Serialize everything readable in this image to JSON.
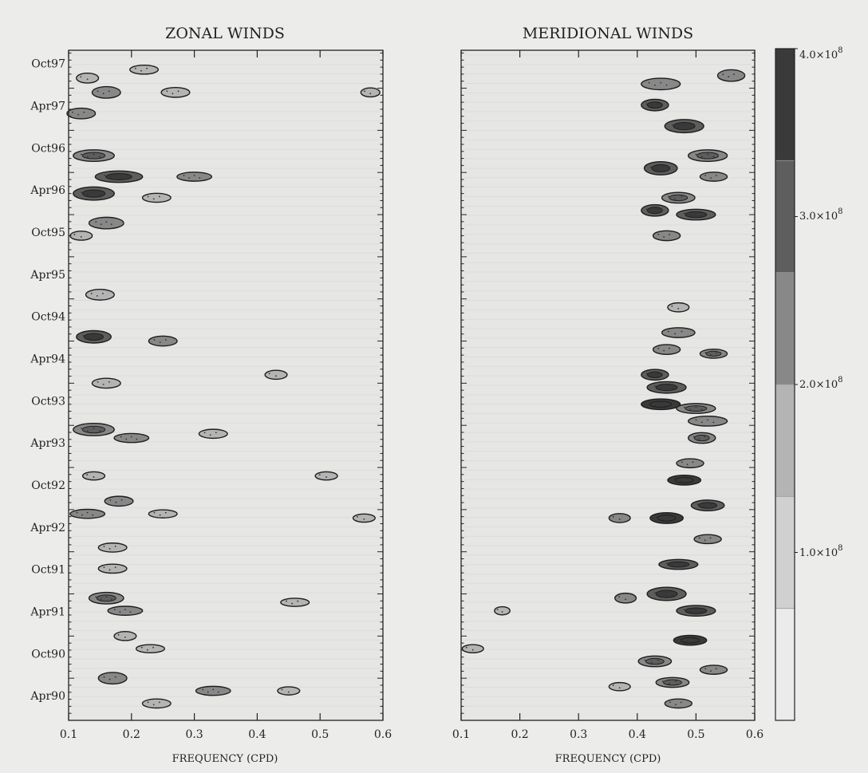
{
  "chart_data": [
    {
      "type": "heatmap",
      "title": "ZONAL WINDS",
      "xlabel": "FREQUENCY (CPD)",
      "ylabel": "",
      "xlim": [
        0.1,
        0.6
      ],
      "x_ticks": [
        "0.1",
        "0.2",
        "0.3",
        "0.4",
        "0.5",
        "0.6"
      ],
      "y_ticks": [
        "Oct97",
        "Apr97",
        "Oct96",
        "Apr96",
        "Oct95",
        "Apr95",
        "Oct94",
        "Apr94",
        "Oct93",
        "Apr93",
        "Oct92",
        "Apr92",
        "Oct91",
        "Apr91",
        "Oct90",
        "Apr90"
      ],
      "y_time_range": [
        "1990-01",
        "1997-12"
      ],
      "blobs": [
        {
          "f": 0.13,
          "t": 1997.62,
          "w": 0.02,
          "h": 0.06,
          "v": 1.2
        },
        {
          "f": 0.22,
          "t": 1997.72,
          "w": 0.03,
          "h": 0.05,
          "v": 1.2
        },
        {
          "f": 0.16,
          "t": 1997.45,
          "w": 0.03,
          "h": 0.08,
          "v": 1.4
        },
        {
          "f": 0.27,
          "t": 1997.45,
          "w": 0.03,
          "h": 0.06,
          "v": 1.3
        },
        {
          "f": 0.58,
          "t": 1997.45,
          "w": 0.015,
          "h": 0.05,
          "v": 1.2
        },
        {
          "f": 0.12,
          "t": 1997.2,
          "w": 0.03,
          "h": 0.07,
          "v": 1.5
        },
        {
          "f": 0.14,
          "t": 1996.7,
          "w": 0.05,
          "h": 0.08,
          "v": 1.8
        },
        {
          "f": 0.18,
          "t": 1996.45,
          "w": 0.06,
          "h": 0.08,
          "v": 2.0
        },
        {
          "f": 0.3,
          "t": 1996.45,
          "w": 0.04,
          "h": 0.05,
          "v": 1.4
        },
        {
          "f": 0.14,
          "t": 1996.25,
          "w": 0.05,
          "h": 0.1,
          "v": 2.4
        },
        {
          "f": 0.24,
          "t": 1996.2,
          "w": 0.03,
          "h": 0.05,
          "v": 1.3
        },
        {
          "f": 0.16,
          "t": 1995.9,
          "w": 0.04,
          "h": 0.08,
          "v": 1.5
        },
        {
          "f": 0.12,
          "t": 1995.75,
          "w": 0.02,
          "h": 0.05,
          "v": 1.3
        },
        {
          "f": 0.15,
          "t": 1995.05,
          "w": 0.03,
          "h": 0.07,
          "v": 1.3
        },
        {
          "f": 0.14,
          "t": 1994.55,
          "w": 0.04,
          "h": 0.09,
          "v": 2.0
        },
        {
          "f": 0.25,
          "t": 1994.5,
          "w": 0.03,
          "h": 0.06,
          "v": 1.4
        },
        {
          "f": 0.43,
          "t": 1994.1,
          "w": 0.02,
          "h": 0.05,
          "v": 1.2
        },
        {
          "f": 0.16,
          "t": 1994.0,
          "w": 0.03,
          "h": 0.06,
          "v": 1.3
        },
        {
          "f": 0.14,
          "t": 1993.45,
          "w": 0.05,
          "h": 0.09,
          "v": 1.8
        },
        {
          "f": 0.2,
          "t": 1993.35,
          "w": 0.04,
          "h": 0.05,
          "v": 1.4
        },
        {
          "f": 0.33,
          "t": 1993.4,
          "w": 0.03,
          "h": 0.05,
          "v": 1.3
        },
        {
          "f": 0.14,
          "t": 1992.9,
          "w": 0.02,
          "h": 0.04,
          "v": 1.2
        },
        {
          "f": 0.51,
          "t": 1992.9,
          "w": 0.02,
          "h": 0.04,
          "v": 1.3
        },
        {
          "f": 0.18,
          "t": 1992.6,
          "w": 0.03,
          "h": 0.06,
          "v": 1.4
        },
        {
          "f": 0.13,
          "t": 1992.45,
          "w": 0.04,
          "h": 0.05,
          "v": 1.5
        },
        {
          "f": 0.25,
          "t": 1992.45,
          "w": 0.03,
          "h": 0.04,
          "v": 1.2
        },
        {
          "f": 0.57,
          "t": 1992.4,
          "w": 0.02,
          "h": 0.04,
          "v": 1.2
        },
        {
          "f": 0.17,
          "t": 1992.05,
          "w": 0.03,
          "h": 0.05,
          "v": 1.3
        },
        {
          "f": 0.17,
          "t": 1991.8,
          "w": 0.03,
          "h": 0.05,
          "v": 1.3
        },
        {
          "f": 0.16,
          "t": 1991.45,
          "w": 0.04,
          "h": 0.08,
          "v": 1.8
        },
        {
          "f": 0.19,
          "t": 1991.3,
          "w": 0.04,
          "h": 0.05,
          "v": 1.4
        },
        {
          "f": 0.46,
          "t": 1991.4,
          "w": 0.03,
          "h": 0.04,
          "v": 1.2
        },
        {
          "f": 0.19,
          "t": 1991.0,
          "w": 0.02,
          "h": 0.05,
          "v": 1.3
        },
        {
          "f": 0.23,
          "t": 1990.85,
          "w": 0.03,
          "h": 0.04,
          "v": 1.2
        },
        {
          "f": 0.17,
          "t": 1990.5,
          "w": 0.03,
          "h": 0.08,
          "v": 1.5
        },
        {
          "f": 0.33,
          "t": 1990.35,
          "w": 0.04,
          "h": 0.05,
          "v": 1.4
        },
        {
          "f": 0.45,
          "t": 1990.35,
          "w": 0.02,
          "h": 0.04,
          "v": 1.2
        },
        {
          "f": 0.24,
          "t": 1990.2,
          "w": 0.03,
          "h": 0.05,
          "v": 1.3
        }
      ]
    },
    {
      "type": "heatmap",
      "title": "MERIDIONAL WINDS",
      "xlabel": "FREQUENCY (CPD)",
      "ylabel": "",
      "xlim": [
        0.1,
        0.6
      ],
      "x_ticks": [
        "0.1",
        "0.2",
        "0.3",
        "0.4",
        "0.5",
        "0.6"
      ],
      "y_time_range": [
        "1990-01",
        "1997-12"
      ],
      "blobs": [
        {
          "f": 0.44,
          "t": 1997.55,
          "w": 0.05,
          "h": 0.08,
          "v": 1.5
        },
        {
          "f": 0.56,
          "t": 1997.65,
          "w": 0.03,
          "h": 0.08,
          "v": 1.4
        },
        {
          "f": 0.43,
          "t": 1997.3,
          "w": 0.03,
          "h": 0.08,
          "v": 2.2
        },
        {
          "f": 0.48,
          "t": 1997.05,
          "w": 0.05,
          "h": 0.1,
          "v": 2.1
        },
        {
          "f": 0.52,
          "t": 1996.7,
          "w": 0.05,
          "h": 0.08,
          "v": 1.8
        },
        {
          "f": 0.44,
          "t": 1996.55,
          "w": 0.04,
          "h": 0.1,
          "v": 2.6
        },
        {
          "f": 0.53,
          "t": 1996.45,
          "w": 0.03,
          "h": 0.05,
          "v": 1.5
        },
        {
          "f": 0.47,
          "t": 1996.2,
          "w": 0.04,
          "h": 0.07,
          "v": 1.8
        },
        {
          "f": 0.43,
          "t": 1996.05,
          "w": 0.03,
          "h": 0.08,
          "v": 2.6
        },
        {
          "f": 0.5,
          "t": 1996.0,
          "w": 0.05,
          "h": 0.07,
          "v": 2.0
        },
        {
          "f": 0.45,
          "t": 1995.75,
          "w": 0.03,
          "h": 0.06,
          "v": 1.4
        },
        {
          "f": 0.47,
          "t": 1994.9,
          "w": 0.02,
          "h": 0.05,
          "v": 1.3
        },
        {
          "f": 0.47,
          "t": 1994.6,
          "w": 0.04,
          "h": 0.06,
          "v": 1.6
        },
        {
          "f": 0.45,
          "t": 1994.4,
          "w": 0.03,
          "h": 0.06,
          "v": 1.4
        },
        {
          "f": 0.53,
          "t": 1994.35,
          "w": 0.03,
          "h": 0.05,
          "v": 1.8
        },
        {
          "f": 0.43,
          "t": 1994.1,
          "w": 0.03,
          "h": 0.07,
          "v": 2.6
        },
        {
          "f": 0.45,
          "t": 1993.95,
          "w": 0.05,
          "h": 0.08,
          "v": 2.4
        },
        {
          "f": 0.44,
          "t": 1993.75,
          "w": 0.05,
          "h": 0.07,
          "v": 3.0
        },
        {
          "f": 0.5,
          "t": 1993.7,
          "w": 0.05,
          "h": 0.06,
          "v": 1.8
        },
        {
          "f": 0.52,
          "t": 1993.55,
          "w": 0.05,
          "h": 0.06,
          "v": 1.6
        },
        {
          "f": 0.51,
          "t": 1993.35,
          "w": 0.03,
          "h": 0.07,
          "v": 1.8
        },
        {
          "f": 0.49,
          "t": 1993.05,
          "w": 0.03,
          "h": 0.05,
          "v": 1.5
        },
        {
          "f": 0.48,
          "t": 1992.85,
          "w": 0.04,
          "h": 0.06,
          "v": 3.6
        },
        {
          "f": 0.52,
          "t": 1992.55,
          "w": 0.04,
          "h": 0.07,
          "v": 2.2
        },
        {
          "f": 0.45,
          "t": 1992.4,
          "w": 0.04,
          "h": 0.07,
          "v": 2.8
        },
        {
          "f": 0.37,
          "t": 1992.4,
          "w": 0.02,
          "h": 0.05,
          "v": 1.5
        },
        {
          "f": 0.52,
          "t": 1992.15,
          "w": 0.03,
          "h": 0.05,
          "v": 1.4
        },
        {
          "f": 0.47,
          "t": 1991.85,
          "w": 0.05,
          "h": 0.06,
          "v": 2.2
        },
        {
          "f": 0.45,
          "t": 1991.5,
          "w": 0.05,
          "h": 0.1,
          "v": 2.6
        },
        {
          "f": 0.38,
          "t": 1991.45,
          "w": 0.02,
          "h": 0.06,
          "v": 1.5
        },
        {
          "f": 0.5,
          "t": 1991.3,
          "w": 0.05,
          "h": 0.07,
          "v": 2.4
        },
        {
          "f": 0.17,
          "t": 1991.3,
          "w": 0.01,
          "h": 0.04,
          "v": 1.2
        },
        {
          "f": 0.49,
          "t": 1990.95,
          "w": 0.04,
          "h": 0.06,
          "v": 3.0
        },
        {
          "f": 0.43,
          "t": 1990.7,
          "w": 0.04,
          "h": 0.07,
          "v": 1.8
        },
        {
          "f": 0.53,
          "t": 1990.6,
          "w": 0.03,
          "h": 0.05,
          "v": 1.6
        },
        {
          "f": 0.46,
          "t": 1990.45,
          "w": 0.04,
          "h": 0.06,
          "v": 1.8
        },
        {
          "f": 0.37,
          "t": 1990.4,
          "w": 0.02,
          "h": 0.04,
          "v": 1.2
        },
        {
          "f": 0.12,
          "t": 1990.85,
          "w": 0.02,
          "h": 0.04,
          "v": 1.2
        },
        {
          "f": 0.47,
          "t": 1990.2,
          "w": 0.03,
          "h": 0.05,
          "v": 1.5
        }
      ]
    }
  ],
  "colorbar": {
    "label_1": "1.0×10",
    "label_2": "2.0×10",
    "label_3": "3.0×10",
    "label_4": "4.0×10",
    "exponent": "8",
    "min": 0,
    "max": 4.0,
    "colors": [
      "#ebebeb",
      "#d0d0d0",
      "#b4b4b4",
      "#888888",
      "#5e5e5e",
      "#3a3a3a"
    ]
  }
}
